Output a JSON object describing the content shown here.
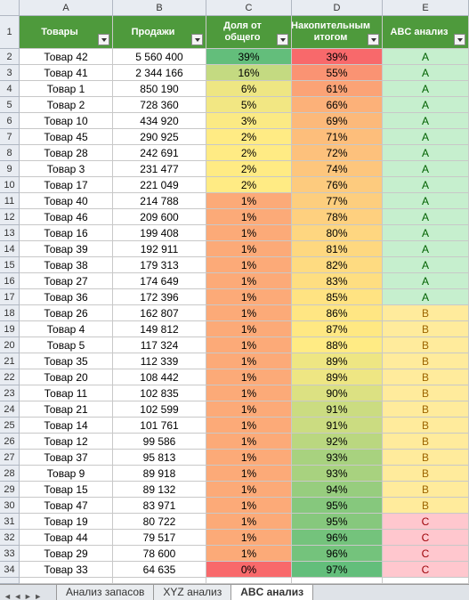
{
  "columns": [
    "A",
    "B",
    "C",
    "D",
    "E"
  ],
  "header_row": "1",
  "header": [
    "Товары",
    "Продажи",
    "Доля от общего",
    "Накопительным итогом",
    "ABC анализ"
  ],
  "rows": [
    {
      "n": "2",
      "cells": [
        "Товар 42",
        "5 560 400",
        "39%",
        "39%",
        "A"
      ]
    },
    {
      "n": "3",
      "cells": [
        "Товар 41",
        "2 344 166",
        "16%",
        "55%",
        "A"
      ]
    },
    {
      "n": "4",
      "cells": [
        "Товар 1",
        "850 190",
        "6%",
        "61%",
        "A"
      ]
    },
    {
      "n": "5",
      "cells": [
        "Товар 2",
        "728 360",
        "5%",
        "66%",
        "A"
      ]
    },
    {
      "n": "6",
      "cells": [
        "Товар 10",
        "434 920",
        "3%",
        "69%",
        "A"
      ]
    },
    {
      "n": "7",
      "cells": [
        "Товар 45",
        "290 925",
        "2%",
        "71%",
        "A"
      ]
    },
    {
      "n": "8",
      "cells": [
        "Товар 28",
        "242 691",
        "2%",
        "72%",
        "A"
      ]
    },
    {
      "n": "9",
      "cells": [
        "Товар 3",
        "231 477",
        "2%",
        "74%",
        "A"
      ]
    },
    {
      "n": "10",
      "cells": [
        "Товар 17",
        "221 049",
        "2%",
        "76%",
        "A"
      ]
    },
    {
      "n": "11",
      "cells": [
        "Товар 40",
        "214 788",
        "1%",
        "77%",
        "A"
      ]
    },
    {
      "n": "12",
      "cells": [
        "Товар 46",
        "209 600",
        "1%",
        "78%",
        "A"
      ]
    },
    {
      "n": "13",
      "cells": [
        "Товар 16",
        "199 408",
        "1%",
        "80%",
        "A"
      ]
    },
    {
      "n": "14",
      "cells": [
        "Товар 39",
        "192 911",
        "1%",
        "81%",
        "A"
      ]
    },
    {
      "n": "15",
      "cells": [
        "Товар 38",
        "179 313",
        "1%",
        "82%",
        "A"
      ]
    },
    {
      "n": "16",
      "cells": [
        "Товар 27",
        "174 649",
        "1%",
        "83%",
        "A"
      ]
    },
    {
      "n": "17",
      "cells": [
        "Товар 36",
        "172 396",
        "1%",
        "85%",
        "A"
      ]
    },
    {
      "n": "18",
      "cells": [
        "Товар 26",
        "162 807",
        "1%",
        "86%",
        "B"
      ]
    },
    {
      "n": "19",
      "cells": [
        "Товар 4",
        "149 812",
        "1%",
        "87%",
        "B"
      ]
    },
    {
      "n": "20",
      "cells": [
        "Товар 5",
        "117 324",
        "1%",
        "88%",
        "B"
      ]
    },
    {
      "n": "21",
      "cells": [
        "Товар 35",
        "112 339",
        "1%",
        "89%",
        "B"
      ]
    },
    {
      "n": "22",
      "cells": [
        "Товар 20",
        "108 442",
        "1%",
        "89%",
        "B"
      ]
    },
    {
      "n": "23",
      "cells": [
        "Товар 11",
        "102 835",
        "1%",
        "90%",
        "B"
      ]
    },
    {
      "n": "24",
      "cells": [
        "Товар 21",
        "102 599",
        "1%",
        "91%",
        "B"
      ]
    },
    {
      "n": "25",
      "cells": [
        "Товар 14",
        "101 761",
        "1%",
        "91%",
        "B"
      ]
    },
    {
      "n": "26",
      "cells": [
        "Товар 12",
        "99 586",
        "1%",
        "92%",
        "B"
      ]
    },
    {
      "n": "27",
      "cells": [
        "Товар 37",
        "95 813",
        "1%",
        "93%",
        "B"
      ]
    },
    {
      "n": "28",
      "cells": [
        "Товар 9",
        "89 918",
        "1%",
        "93%",
        "B"
      ]
    },
    {
      "n": "29",
      "cells": [
        "Товар 15",
        "89 132",
        "1%",
        "94%",
        "B"
      ]
    },
    {
      "n": "30",
      "cells": [
        "Товар 47",
        "83 971",
        "1%",
        "95%",
        "B"
      ]
    },
    {
      "n": "31",
      "cells": [
        "Товар 19",
        "80 722",
        "1%",
        "95%",
        "C"
      ]
    },
    {
      "n": "32",
      "cells": [
        "Товар 44",
        "79 517",
        "1%",
        "96%",
        "C"
      ]
    },
    {
      "n": "33",
      "cells": [
        "Товар 29",
        "78 600",
        "1%",
        "96%",
        "C"
      ]
    },
    {
      "n": "34",
      "cells": [
        "Товар 33",
        "64 635",
        "0%",
        "97%",
        "C"
      ]
    }
  ],
  "tabs": [
    "Анализ запасов",
    "XYZ анализ",
    "ABC анализ"
  ]
}
